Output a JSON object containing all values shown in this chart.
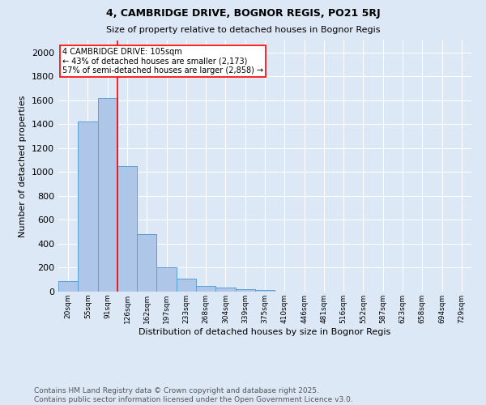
{
  "title1": "4, CAMBRIDGE DRIVE, BOGNOR REGIS, PO21 5RJ",
  "title2": "Size of property relative to detached houses in Bognor Regis",
  "xlabel": "Distribution of detached houses by size in Bognor Regis",
  "ylabel": "Number of detached properties",
  "categories": [
    "20sqm",
    "55sqm",
    "91sqm",
    "126sqm",
    "162sqm",
    "197sqm",
    "233sqm",
    "268sqm",
    "304sqm",
    "339sqm",
    "375sqm",
    "410sqm",
    "446sqm",
    "481sqm",
    "516sqm",
    "552sqm",
    "587sqm",
    "623sqm",
    "658sqm",
    "694sqm",
    "729sqm"
  ],
  "values": [
    85,
    1420,
    1620,
    1050,
    480,
    205,
    110,
    45,
    35,
    20,
    15,
    0,
    0,
    0,
    0,
    0,
    0,
    0,
    0,
    0,
    0
  ],
  "bar_color": "#aec6e8",
  "bar_edge_color": "#5a9fd4",
  "vline_x": 2.5,
  "vline_color": "red",
  "annotation_text": "4 CAMBRIDGE DRIVE: 105sqm\n← 43% of detached houses are smaller (2,173)\n57% of semi-detached houses are larger (2,858) →",
  "annotation_box_color": "white",
  "annotation_box_edge": "red",
  "ylim": [
    0,
    2100
  ],
  "yticks": [
    0,
    200,
    400,
    600,
    800,
    1000,
    1200,
    1400,
    1600,
    1800,
    2000
  ],
  "bg_color": "#dce8f5",
  "plot_bg_color": "#dce8f5",
  "footer": "Contains HM Land Registry data © Crown copyright and database right 2025.\nContains public sector information licensed under the Open Government Licence v3.0.",
  "footer_fontsize": 6.5,
  "title1_fontsize": 9,
  "title2_fontsize": 8
}
